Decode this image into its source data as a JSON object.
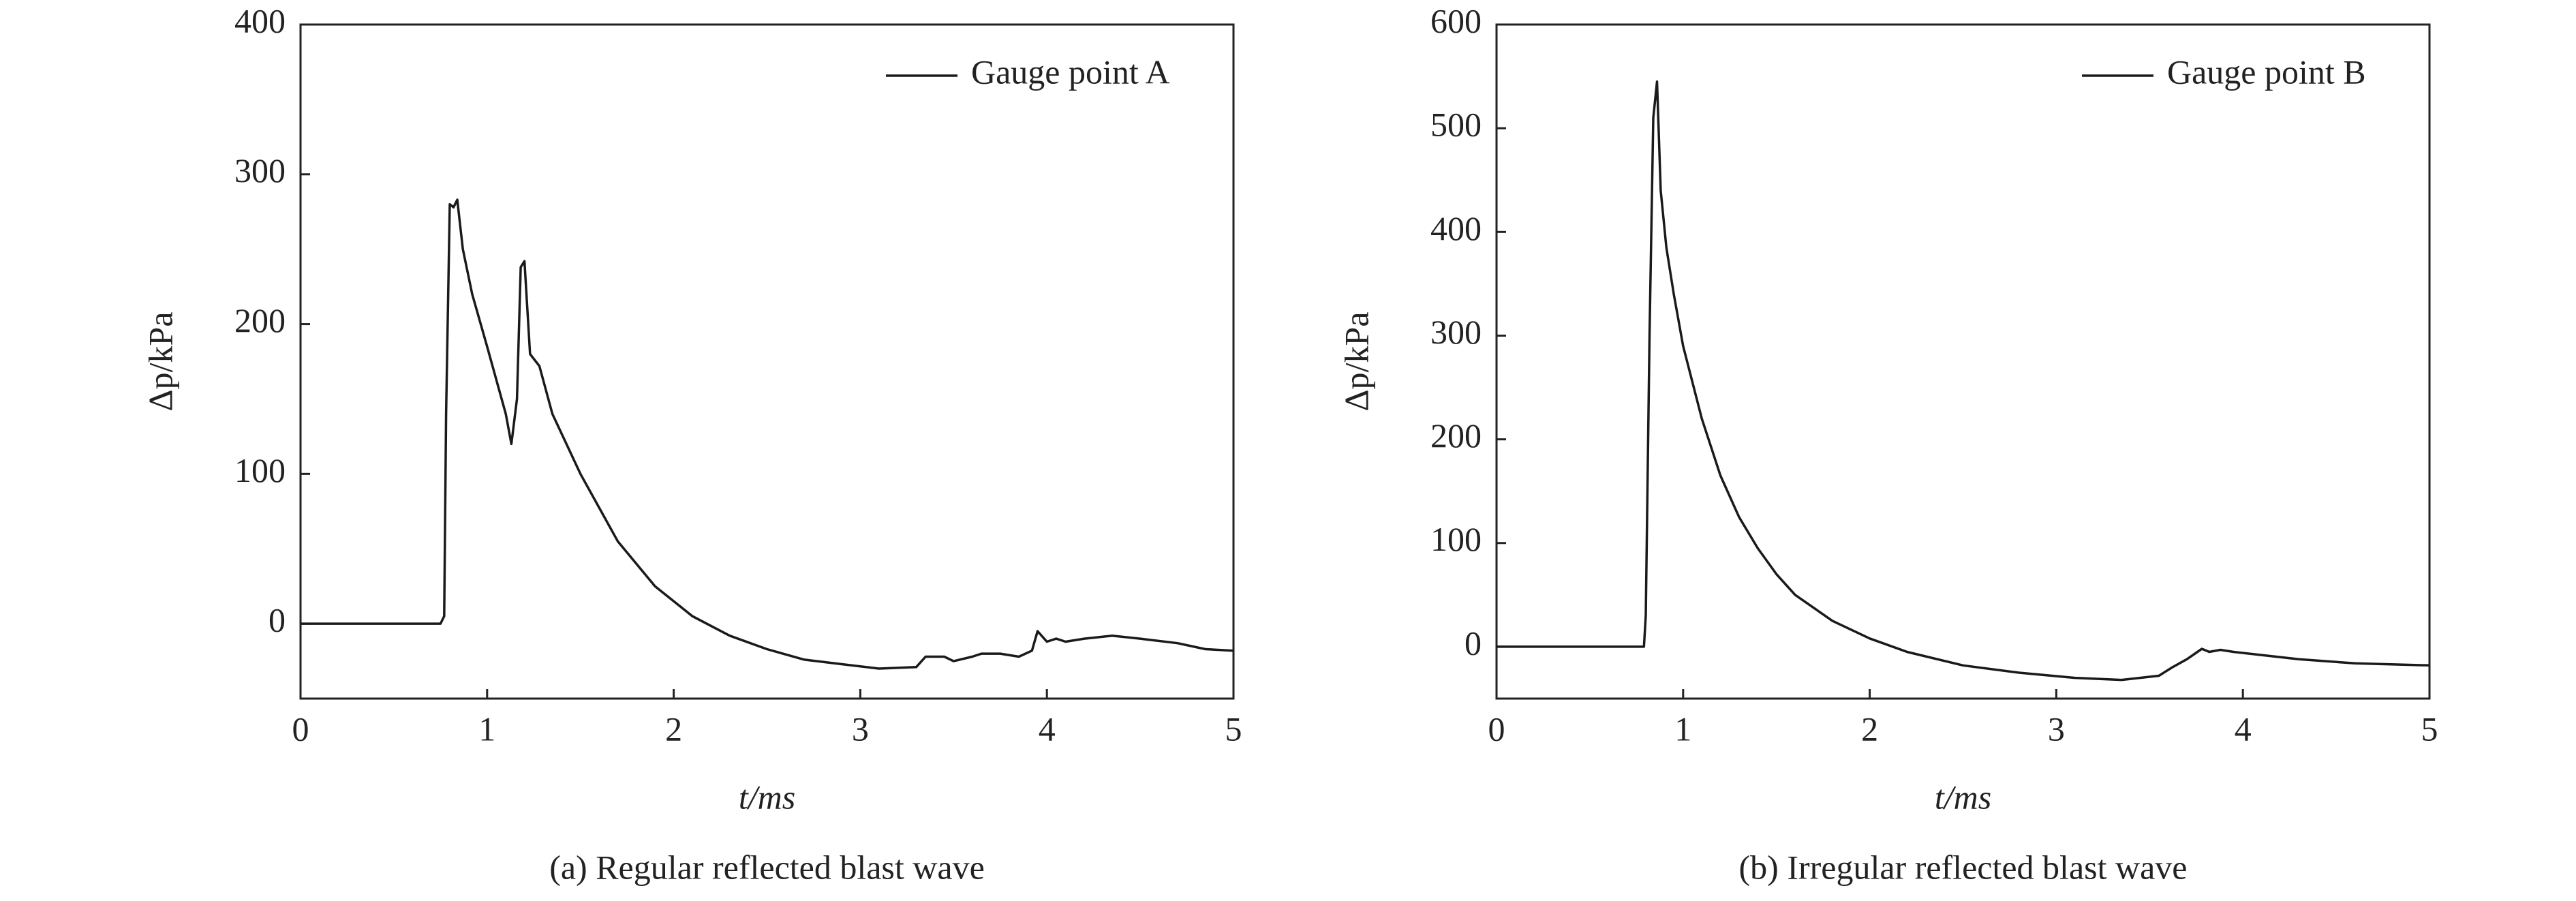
{
  "chart_data": [
    {
      "type": "line",
      "caption": "(a) Regular reflected blast wave",
      "xlabel": "t/ms",
      "ylabel": "Δp/kPa",
      "xlim": [
        0,
        5
      ],
      "xticks": [
        0,
        1,
        2,
        3,
        4,
        5
      ],
      "ylim": [
        -50,
        400
      ],
      "yticks": [
        0,
        100,
        200,
        300,
        400
      ],
      "legend": "upper right",
      "series": [
        {
          "name": "Gauge point A",
          "color": "#1a1a1a",
          "x": [
            0,
            0.75,
            0.77,
            0.78,
            0.8,
            0.82,
            0.84,
            0.87,
            0.92,
            1.0,
            1.1,
            1.13,
            1.16,
            1.18,
            1.2,
            1.23,
            1.28,
            1.35,
            1.5,
            1.7,
            1.9,
            2.1,
            2.3,
            2.5,
            2.7,
            2.9,
            3.1,
            3.3,
            3.35,
            3.45,
            3.5,
            3.6,
            3.65,
            3.75,
            3.85,
            3.92,
            3.95,
            4.0,
            4.05,
            4.1,
            4.2,
            4.35,
            4.5,
            4.7,
            4.85,
            5.0
          ],
          "values": [
            0,
            0,
            5,
            140,
            280,
            278,
            283,
            250,
            220,
            185,
            140,
            120,
            150,
            238,
            242,
            180,
            172,
            140,
            100,
            55,
            25,
            5,
            -8,
            -17,
            -24,
            -27,
            -30,
            -29,
            -22,
            -22,
            -25,
            -22,
            -20,
            -20,
            -22,
            -18,
            -5,
            -12,
            -10,
            -12,
            -10,
            -8,
            -10,
            -13,
            -17,
            -18
          ]
        }
      ]
    },
    {
      "type": "line",
      "caption": "(b) Irregular reflected blast wave",
      "xlabel": "t/ms",
      "ylabel": "Δp/kPa",
      "xlim": [
        0,
        5
      ],
      "xticks": [
        0,
        1,
        2,
        3,
        4,
        5
      ],
      "ylim": [
        -50,
        600
      ],
      "yticks": [
        0,
        100,
        200,
        300,
        400,
        500,
        600
      ],
      "legend": "upper right",
      "series": [
        {
          "name": "Gauge point B",
          "color": "#1a1a1a",
          "x": [
            0,
            0.79,
            0.8,
            0.82,
            0.84,
            0.86,
            0.88,
            0.91,
            0.95,
            1.0,
            1.1,
            1.2,
            1.3,
            1.4,
            1.5,
            1.6,
            1.8,
            2.0,
            2.2,
            2.5,
            2.8,
            3.1,
            3.35,
            3.55,
            3.62,
            3.7,
            3.78,
            3.82,
            3.88,
            3.95,
            4.1,
            4.3,
            4.6,
            5.0
          ],
          "values": [
            0,
            0,
            30,
            300,
            510,
            545,
            440,
            385,
            340,
            290,
            220,
            165,
            125,
            95,
            70,
            50,
            25,
            8,
            -5,
            -18,
            -25,
            -30,
            -32,
            -28,
            -20,
            -12,
            -2,
            -5,
            -3,
            -5,
            -8,
            -12,
            -16,
            -18
          ]
        }
      ]
    }
  ]
}
